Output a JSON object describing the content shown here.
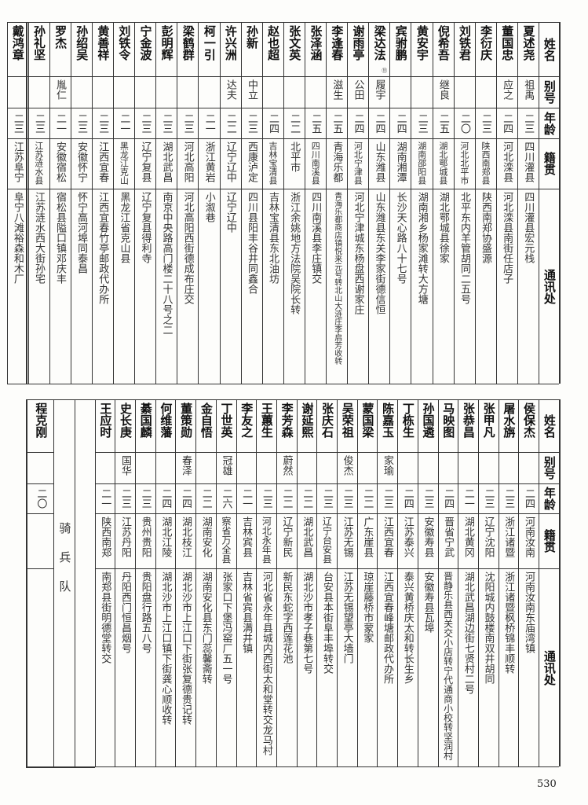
{
  "headers": {
    "name": "姓名",
    "alias": "别号",
    "age": "年龄",
    "native": "籍贯",
    "address": "通讯处"
  },
  "top_table": [
    {
      "name": "夏述尧",
      "alias": "祖禹",
      "age": "二三",
      "native": "四川灌县",
      "address": "四川灌县宏元栈"
    },
    {
      "name": "董国忠",
      "alias": "应之",
      "age": "二四",
      "native": "河北滦县",
      "address": "河北滦县南街任店子"
    },
    {
      "name": "李衍庆",
      "alias": "",
      "age": "二三",
      "native": "陕西南郑县",
      "address": "陕西南郑协盛源"
    },
    {
      "name": "刘铁君",
      "alias": "",
      "age": "二〇",
      "native": "河北北平市",
      "address": "北平东内羊管胡同二五号"
    },
    {
      "name": "倪希吾",
      "alias": "继良",
      "age": "二五",
      "native": "湖北鄂城县",
      "address": "湖北鄂城县徐家"
    },
    {
      "name": "黄安宇",
      "alias": "",
      "age": "二三",
      "native": "湖南邵阳县",
      "address": "湖南湘乡杨家滩转大方塘"
    },
    {
      "name": "宾驸鹏",
      "alias": "",
      "age": "二四",
      "native": "湖南湘潭",
      "address": "长沙天心路八十七号"
    },
    {
      "name": "梁达法",
      "note": "⑪",
      "alias": "履宇",
      "age": "二四",
      "native": "山东潍县",
      "address": "山东潍县东关李家街德信恒"
    },
    {
      "name": "谢雨亭",
      "alias": "公田",
      "age": "二四",
      "native": "河北宁津县",
      "address": "河北宁津城东杨盘西谢家庄"
    },
    {
      "name": "李逢春",
      "alias": "滋生",
      "age": "二五",
      "native": "青海乐都",
      "address": "青海乐都商店镇悦来元号转北山大涟庄李启芳收转"
    },
    {
      "name": "张泽涵",
      "alias": "",
      "age": "二五",
      "native": "四川南溪县",
      "address": "四川南溪县李庄镇交"
    },
    {
      "name": "张文英",
      "alias": "",
      "age": "二二",
      "native": "北平市",
      "address": "浙江余姚地方法院吴院长转"
    },
    {
      "name": "赵也超",
      "alias": "",
      "age": "二四",
      "native": "吉林宝清县",
      "address": "吉林宝清县东北油坊"
    },
    {
      "name": "孙新",
      "alias": "中立",
      "age": "二三",
      "native": "西康泸定",
      "address": "四川县阳丰谷井同鑫合"
    },
    {
      "name": "许兴洲",
      "alias": "达夫",
      "age": "二二",
      "native": "辽宁辽中",
      "address": "辽宁辽中"
    },
    {
      "name": "柯一引",
      "alias": "",
      "age": "二一",
      "native": "浙江黄岩",
      "address": "小溆巷"
    },
    {
      "name": "梁鹤群",
      "alias": "",
      "age": "二三",
      "native": "河北高阳",
      "address": "河北高阳西街德成布庄交"
    },
    {
      "name": "彭明辉",
      "alias": "",
      "age": "二三",
      "native": "湖北武昌",
      "address": "南京中央路高门楼二十八号之二"
    },
    {
      "name": "宁金波",
      "alias": "",
      "age": "二三",
      "native": "辽宁复县",
      "address": "辽宁复县得利寺"
    },
    {
      "name": "刘铁令",
      "alias": "",
      "age": "二一",
      "native": "黑龙江克山",
      "address": "黑龙江省克山县"
    },
    {
      "name": "黄善祥",
      "alias": "",
      "age": "二三",
      "native": "江西宜春",
      "address": "江西宜春竹亭邮政代办所"
    },
    {
      "name": "孙绍吴",
      "alias": "",
      "age": "二三",
      "native": "安徽怀宁",
      "address": "怀宁高河埠同泰昌"
    },
    {
      "name": "罗杰",
      "alias": "胤仁",
      "age": "二一",
      "native": "安徽宿松",
      "address": "宿松县隘口镇邓庆丰"
    },
    {
      "name": "孙礼坚",
      "alias": "",
      "age": "二三",
      "native": "江苏涟水县",
      "address": "江苏涟水西大街孙宅"
    },
    {
      "name": "戴鸿章",
      "alias": "",
      "age": "二三",
      "native": "江苏阜宁",
      "address": "阜宁八滩裕森和木厂"
    }
  ],
  "bottom_table": [
    {
      "name": "侯保杰",
      "alias": "",
      "age": "二四",
      "native": "河南汝南",
      "address": "河南汝南东庙湾镇"
    },
    {
      "name": "屠水旃",
      "alias": "",
      "age": "二三",
      "native": "浙江诸暨",
      "address": "浙江诸暨枫桥锦丰顺转"
    },
    {
      "name": "张甲凡",
      "alias": "",
      "age": "二三",
      "native": "辽宁沈阳",
      "address": "沈阳城内鼓楼南双井胡同"
    },
    {
      "name": "张恭昌",
      "alias": "",
      "age": "二一",
      "native": "湖北黄冈",
      "address": "湖北武昌湖边街七贤村二号"
    },
    {
      "name": "马映图",
      "alias": "",
      "age": "二四",
      "native": "晋省宁武",
      "address": "晋静乐县西关交小店转宁代通商小校转坚润村"
    },
    {
      "name": "孙国遴",
      "alias": "",
      "age": "二三",
      "native": "安徽寿县",
      "address": "安徽寿县瓦埠"
    },
    {
      "name": "丁栋生",
      "alias": "",
      "age": "二四",
      "native": "江苏泰兴",
      "address": "泰兴黄桥庆太和转长生乡"
    },
    {
      "name": "陈嘉玉",
      "alias": "家瑜",
      "age": "二三",
      "native": "江西宜春",
      "address": "江西宜春峰塘邮政代办所"
    },
    {
      "name": "蒙国梁",
      "alias": "",
      "age": "二二",
      "native": "广东崖县",
      "address": "琼崖藤桥市蒙家"
    },
    {
      "name": "吴荣祖",
      "alias": "俊杰",
      "age": "二三",
      "native": "江苏无锡",
      "address": "江苏无锡望亭大墙门"
    },
    {
      "name": "张庆石",
      "alias": "",
      "age": "二三",
      "native": "辽宁台安县",
      "address": "台安县本街阜丰埠转交"
    },
    {
      "name": "谢延熙",
      "alias": "",
      "age": "二二",
      "native": "湖北武昌",
      "address": "湖北沙市孝子巷第七号"
    },
    {
      "name": "李芳森",
      "alias": "蔚然",
      "age": "二二",
      "native": "辽宁新民",
      "address": "新民东蛇字西莲花池"
    },
    {
      "name": "王蕙生",
      "alias": "",
      "age": "二三",
      "native": "河北永年县",
      "address": "河北省永年县城内西街太和堂转交龙马村"
    },
    {
      "name": "李友之",
      "alias": "",
      "age": "二一",
      "native": "吉林宾县",
      "address": "吉林省宾县满井镇"
    },
    {
      "name": "丁世英",
      "alias": "冠雄",
      "age": "二六",
      "native": "察省万全县",
      "address": "张家口下堡冯窑厂五一号"
    },
    {
      "name": "金自悟",
      "alias": "",
      "age": "二二",
      "native": "湖南安化",
      "address": "湖南安化县东门蕊馨斋转"
    },
    {
      "name": "董策勋",
      "alias": "春泽",
      "age": "二四",
      "native": "湖北枝江",
      "address": "湖北沙市上江口下街张复德贵记转"
    },
    {
      "name": "何维藩",
      "alias": "",
      "age": "二四",
      "native": "湖北江陵",
      "address": "湖北沙市上江口镇下街龚心顺收转"
    },
    {
      "name": "綦国麟",
      "alias": "",
      "age": "二三",
      "native": "贵州贵阳",
      "address": "贵阳盘行路五八号"
    },
    {
      "name": "史长庚",
      "alias": "国华",
      "age": "二三",
      "native": "江苏丹阳",
      "address": "丹阳西门恒昌烟号"
    },
    {
      "name": "王应时",
      "alias": "",
      "age": "二一",
      "native": "陕西南郑",
      "address": "南郑县街明德堂转交"
    }
  ],
  "section_label": "骑兵队",
  "cavalry": [
    {
      "name": "程克刚",
      "alias": "",
      "age": "二〇",
      "native": "",
      "address": ""
    }
  ],
  "page_number": "530"
}
